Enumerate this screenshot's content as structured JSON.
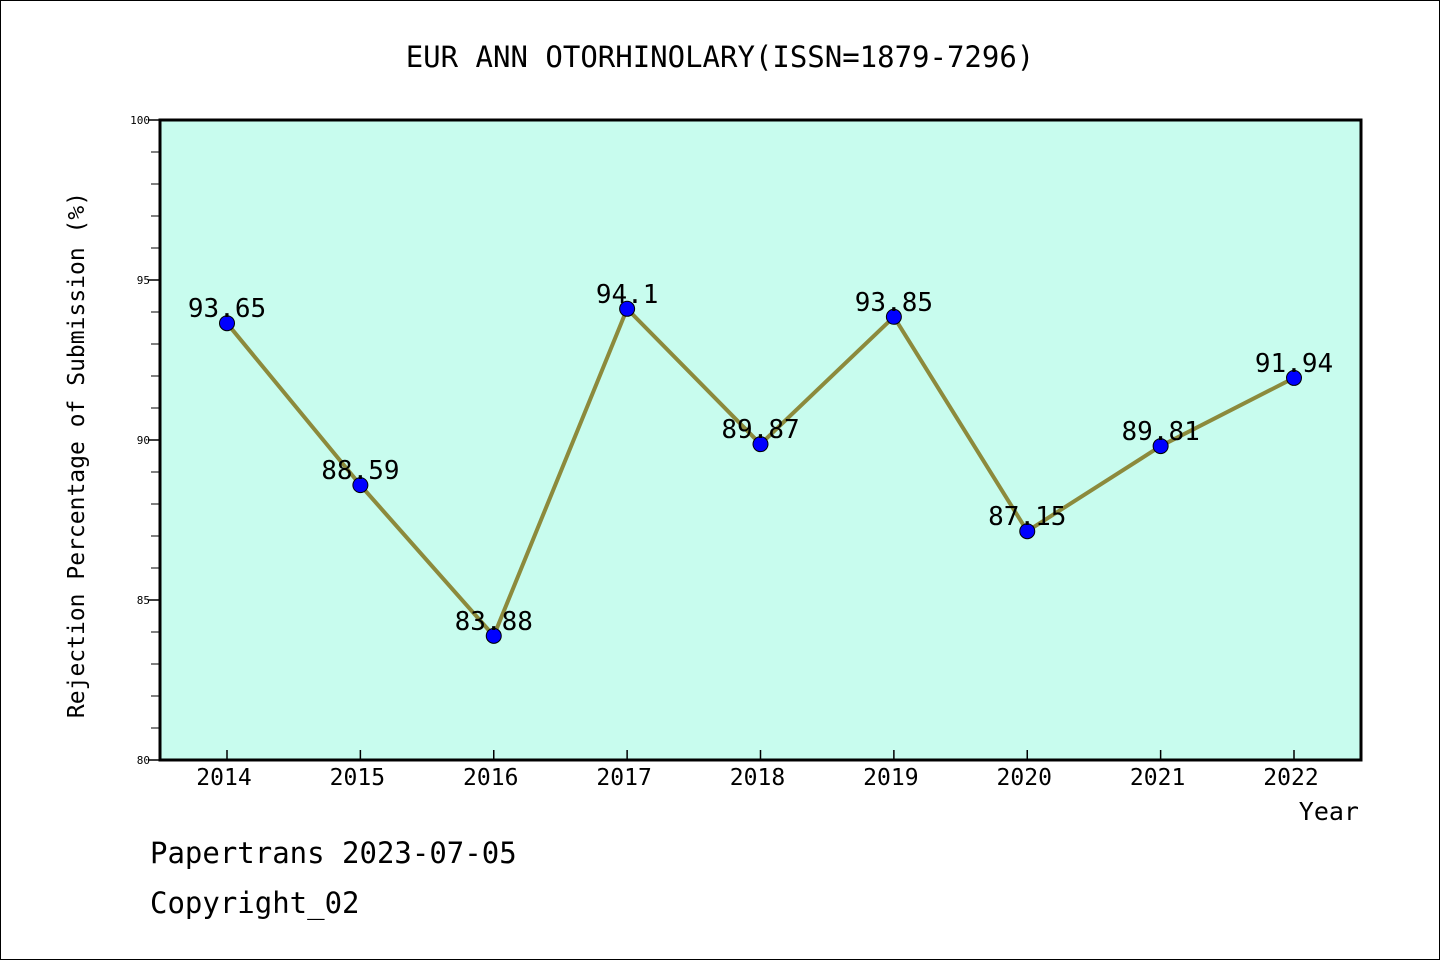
{
  "chart_data": {
    "type": "line",
    "title": "EUR ANN OTORHINOLARY(ISSN=1879-7296)",
    "xlabel": "Year",
    "ylabel": "Rejection Percentage of Submission (%)",
    "categories": [
      "2014",
      "2015",
      "2016",
      "2017",
      "2018",
      "2019",
      "2020",
      "2021",
      "2022"
    ],
    "values": [
      93.65,
      88.59,
      83.88,
      94.1,
      89.87,
      93.85,
      87.15,
      89.81,
      91.94
    ],
    "data_labels": [
      "93.65",
      "88.59",
      "83.88",
      "94.1",
      "89.87",
      "93.85",
      "87.15",
      "89.81",
      "91.94"
    ],
    "ylim": [
      80,
      100
    ],
    "yticks": [
      "80",
      "85",
      "90",
      "95",
      "100"
    ],
    "grid": false,
    "colors": {
      "plot_background": "#c8fcee",
      "line": "#8c8a3c",
      "marker": "#0000ff"
    }
  },
  "footer": {
    "line1": "Papertrans 2023-07-05",
    "line2": "Copyright_02"
  }
}
